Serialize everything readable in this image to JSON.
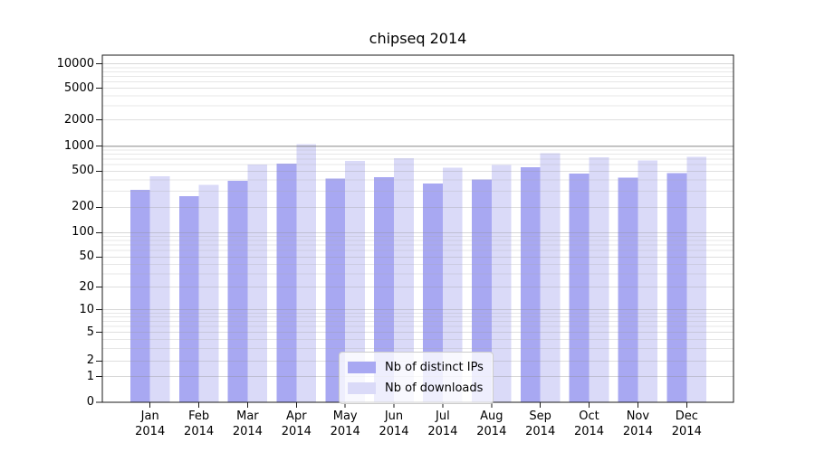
{
  "chart_data": {
    "type": "bar",
    "title": "chipseq 2014",
    "categories": [
      "Jan",
      "Feb",
      "Mar",
      "Apr",
      "May",
      "Jun",
      "Jul",
      "Aug",
      "Sep",
      "Oct",
      "Nov",
      "Dec"
    ],
    "category_year": "2014",
    "series": [
      {
        "name": "Nb of distinct IPs",
        "color": "#a8a8f2",
        "values": [
          310,
          265,
          390,
          615,
          415,
          430,
          365,
          405,
          560,
          470,
          425,
          475
        ]
      },
      {
        "name": "Nb of downloads",
        "color": "#dadaf8",
        "values": [
          440,
          355,
          600,
          1060,
          665,
          715,
          550,
          595,
          820,
          735,
          670,
          745
        ]
      }
    ],
    "y_axis": {
      "scale": "symlog",
      "ticks": [
        0,
        1,
        2,
        5,
        10,
        20,
        50,
        100,
        200,
        500,
        1000,
        2000,
        5000,
        10000
      ]
    },
    "x_axis": {
      "tick_label_lines": 2
    },
    "legend": {
      "position": "lower-center-inside"
    },
    "grid": true,
    "colors": {
      "grid_major_decade": "#bdbdbd",
      "grid_major": "#e2e2e2",
      "grid_minor": "#efefef",
      "spine": "#1a1a1a"
    }
  }
}
